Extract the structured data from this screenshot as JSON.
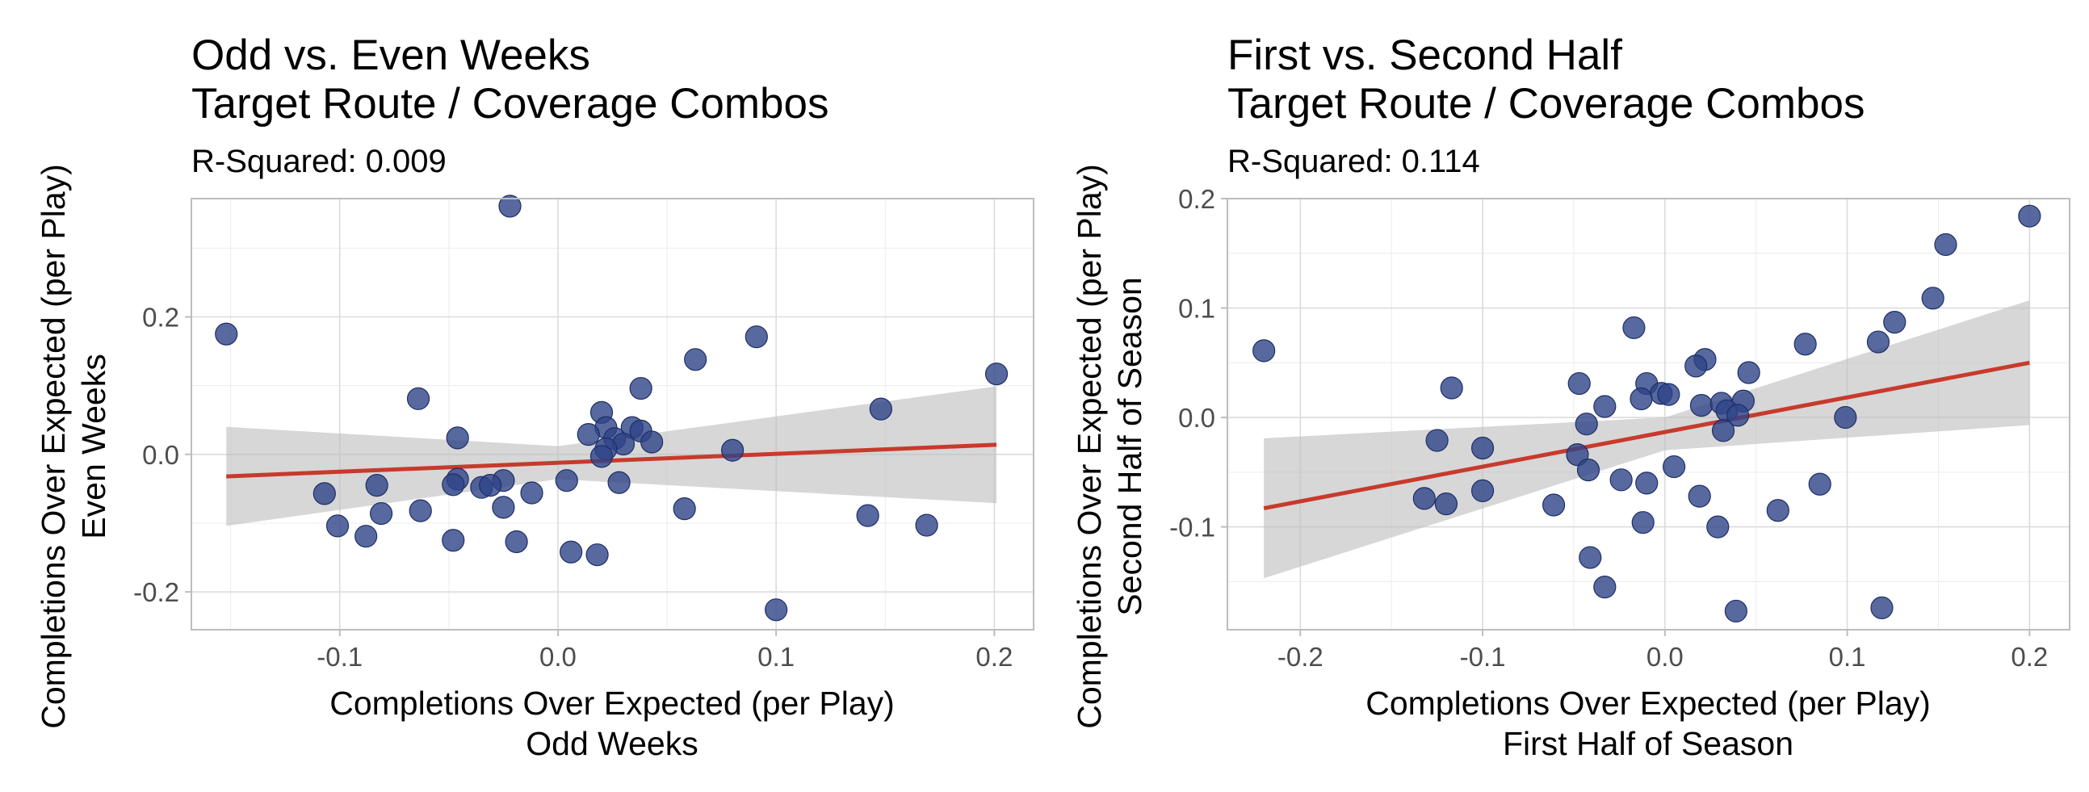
{
  "chart_data": [
    {
      "type": "scatter",
      "title_lines": [
        "Odd vs. Even Weeks",
        "Target Route / Coverage Combos"
      ],
      "subtitle": "R-Squared: 0.009",
      "xlabel_lines": [
        "Completions Over Expected (per Play)",
        "Odd Weeks"
      ],
      "ylabel_lines": [
        "Completions Over Expected (per Play)",
        "Even Weeks"
      ],
      "xlim": [
        -0.168,
        0.218
      ],
      "ylim": [
        -0.255,
        0.372
      ],
      "xticks": [
        -0.1,
        0.0,
        0.1,
        0.2
      ],
      "xtick_labels": [
        "-0.1",
        "0.0",
        "0.1",
        "0.2"
      ],
      "yticks": [
        -0.2,
        0.0,
        0.2
      ],
      "ytick_labels": [
        "-0.2",
        "0.0",
        "0.2"
      ],
      "grid": true,
      "point_color": "#2e4488",
      "line_color": "#c83a2c",
      "band_color": "#bdbdbd",
      "trend": {
        "x": [
          -0.152,
          0.201
        ],
        "y": [
          -0.032,
          0.014
        ]
      },
      "band": {
        "x": [
          -0.152,
          0.0,
          0.201
        ],
        "upper": [
          0.04,
          0.012,
          0.099
        ],
        "lower": [
          -0.104,
          -0.036,
          -0.071
        ]
      },
      "points": [
        {
          "x": -0.152,
          "y": 0.175
        },
        {
          "x": -0.022,
          "y": 0.361
        },
        {
          "x": 0.091,
          "y": 0.171
        },
        {
          "x": 0.201,
          "y": 0.117
        },
        {
          "x": 0.063,
          "y": 0.138
        },
        {
          "x": 0.148,
          "y": 0.066
        },
        {
          "x": -0.064,
          "y": 0.081
        },
        {
          "x": -0.046,
          "y": 0.024
        },
        {
          "x": 0.038,
          "y": 0.096
        },
        {
          "x": 0.02,
          "y": 0.061
        },
        {
          "x": 0.034,
          "y": 0.039
        },
        {
          "x": 0.038,
          "y": 0.034
        },
        {
          "x": 0.022,
          "y": 0.039
        },
        {
          "x": 0.014,
          "y": 0.029
        },
        {
          "x": 0.043,
          "y": 0.018
        },
        {
          "x": 0.026,
          "y": 0.023
        },
        {
          "x": 0.03,
          "y": 0.015
        },
        {
          "x": 0.022,
          "y": 0.008
        },
        {
          "x": 0.02,
          "y": -0.003
        },
        {
          "x": 0.08,
          "y": 0.006
        },
        {
          "x": -0.046,
          "y": -0.036
        },
        {
          "x": -0.048,
          "y": -0.044
        },
        {
          "x": -0.035,
          "y": -0.048
        },
        {
          "x": -0.025,
          "y": -0.038
        },
        {
          "x": -0.031,
          "y": -0.045
        },
        {
          "x": 0.028,
          "y": -0.041
        },
        {
          "x": 0.004,
          "y": -0.038
        },
        {
          "x": -0.083,
          "y": -0.045
        },
        {
          "x": -0.107,
          "y": -0.057
        },
        {
          "x": -0.012,
          "y": -0.056
        },
        {
          "x": -0.025,
          "y": -0.077
        },
        {
          "x": -0.063,
          "y": -0.082
        },
        {
          "x": -0.081,
          "y": -0.086
        },
        {
          "x": 0.058,
          "y": -0.079
        },
        {
          "x": -0.101,
          "y": -0.104
        },
        {
          "x": -0.088,
          "y": -0.119
        },
        {
          "x": -0.048,
          "y": -0.125
        },
        {
          "x": -0.019,
          "y": -0.127
        },
        {
          "x": 0.006,
          "y": -0.142
        },
        {
          "x": 0.018,
          "y": -0.146
        },
        {
          "x": 0.142,
          "y": -0.089
        },
        {
          "x": 0.169,
          "y": -0.103
        },
        {
          "x": 0.1,
          "y": -0.226
        }
      ]
    },
    {
      "type": "scatter",
      "title_lines": [
        "First vs. Second Half",
        "Target Route / Coverage Combos"
      ],
      "subtitle": "R-Squared: 0.114",
      "xlabel_lines": [
        "Completions Over Expected (per Play)",
        "First Half of Season"
      ],
      "ylabel_lines": [
        "Completions Over Expected (per Play)",
        "Second Half of Season"
      ],
      "xlim": [
        -0.24,
        0.222
      ],
      "ylim": [
        -0.194,
        0.2
      ],
      "xticks": [
        -0.2,
        -0.1,
        0.0,
        0.1,
        0.2
      ],
      "xtick_labels": [
        "-0.2",
        "-0.1",
        "0.0",
        "0.1",
        "0.2"
      ],
      "yticks": [
        -0.1,
        0.0,
        0.1,
        0.2
      ],
      "ytick_labels": [
        "-0.1",
        "0.0",
        "0.1",
        "0.2"
      ],
      "grid": true,
      "point_color": "#2e4488",
      "line_color": "#c83a2c",
      "band_color": "#bdbdbd",
      "trend": {
        "x": [
          -0.22,
          0.2
        ],
        "y": [
          -0.083,
          0.05
        ]
      },
      "band": {
        "x": [
          -0.22,
          0.0,
          0.2
        ],
        "upper": [
          -0.019,
          0.0,
          0.107
        ],
        "lower": [
          -0.147,
          -0.03,
          -0.007
        ]
      },
      "points": [
        {
          "x": 0.2,
          "y": 0.184
        },
        {
          "x": 0.154,
          "y": 0.158
        },
        {
          "x": 0.147,
          "y": 0.109
        },
        {
          "x": 0.126,
          "y": 0.087
        },
        {
          "x": 0.117,
          "y": 0.069
        },
        {
          "x": 0.077,
          "y": 0.067
        },
        {
          "x": -0.22,
          "y": 0.061
        },
        {
          "x": -0.017,
          "y": 0.082
        },
        {
          "x": 0.022,
          "y": 0.053
        },
        {
          "x": 0.017,
          "y": 0.047
        },
        {
          "x": 0.046,
          "y": 0.041
        },
        {
          "x": -0.117,
          "y": 0.027
        },
        {
          "x": -0.047,
          "y": 0.031
        },
        {
          "x": -0.01,
          "y": 0.031
        },
        {
          "x": -0.002,
          "y": 0.022
        },
        {
          "x": 0.002,
          "y": 0.021
        },
        {
          "x": -0.013,
          "y": 0.017
        },
        {
          "x": -0.033,
          "y": 0.01
        },
        {
          "x": 0.02,
          "y": 0.011
        },
        {
          "x": 0.031,
          "y": 0.013
        },
        {
          "x": 0.043,
          "y": 0.015
        },
        {
          "x": 0.034,
          "y": 0.006
        },
        {
          "x": 0.04,
          "y": 0.002
        },
        {
          "x": 0.099,
          "y": 0.0
        },
        {
          "x": -0.043,
          "y": -0.006
        },
        {
          "x": 0.032,
          "y": -0.012
        },
        {
          "x": -0.125,
          "y": -0.021
        },
        {
          "x": -0.1,
          "y": -0.028
        },
        {
          "x": -0.048,
          "y": -0.034
        },
        {
          "x": -0.042,
          "y": -0.048
        },
        {
          "x": 0.005,
          "y": -0.045
        },
        {
          "x": -0.024,
          "y": -0.057
        },
        {
          "x": -0.01,
          "y": -0.06
        },
        {
          "x": 0.085,
          "y": -0.061
        },
        {
          "x": -0.1,
          "y": -0.067
        },
        {
          "x": 0.019,
          "y": -0.072
        },
        {
          "x": -0.132,
          "y": -0.074
        },
        {
          "x": -0.12,
          "y": -0.079
        },
        {
          "x": -0.061,
          "y": -0.08
        },
        {
          "x": 0.062,
          "y": -0.085
        },
        {
          "x": -0.012,
          "y": -0.096
        },
        {
          "x": 0.029,
          "y": -0.1
        },
        {
          "x": -0.041,
          "y": -0.128
        },
        {
          "x": -0.033,
          "y": -0.155
        },
        {
          "x": 0.039,
          "y": -0.177
        },
        {
          "x": 0.119,
          "y": -0.174
        }
      ]
    }
  ]
}
